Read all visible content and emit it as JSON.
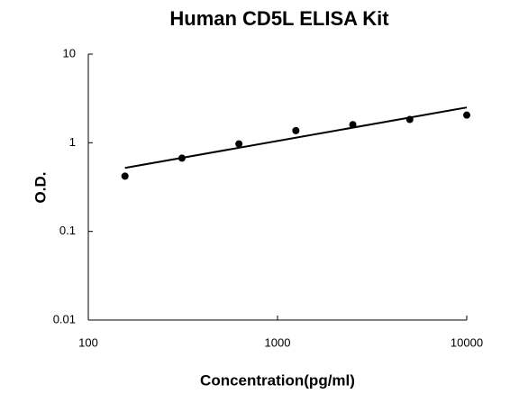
{
  "chart_data": {
    "type": "scatter",
    "title": "Human CD5L ELISA Kit",
    "x_label": "Concentration(pg/ml)",
    "y_label": "O.D.",
    "x": [
      156.25,
      312.5,
      625,
      1250,
      2500,
      5000,
      10000
    ],
    "values": [
      0.42,
      0.67,
      0.97,
      1.37,
      1.6,
      1.83,
      2.05
    ],
    "color": "#000000",
    "trendline": {
      "x": [
        156.25,
        10000
      ],
      "values": [
        0.52,
        2.5
      ],
      "color": "#000000"
    },
    "x_log": true,
    "y_log": true,
    "xlim": [
      100,
      10000
    ],
    "xticks": [
      100,
      1000,
      10000
    ],
    "ylim": [
      0.01,
      10
    ],
    "yticks": [
      0.01,
      0.1,
      1,
      10
    ]
  }
}
